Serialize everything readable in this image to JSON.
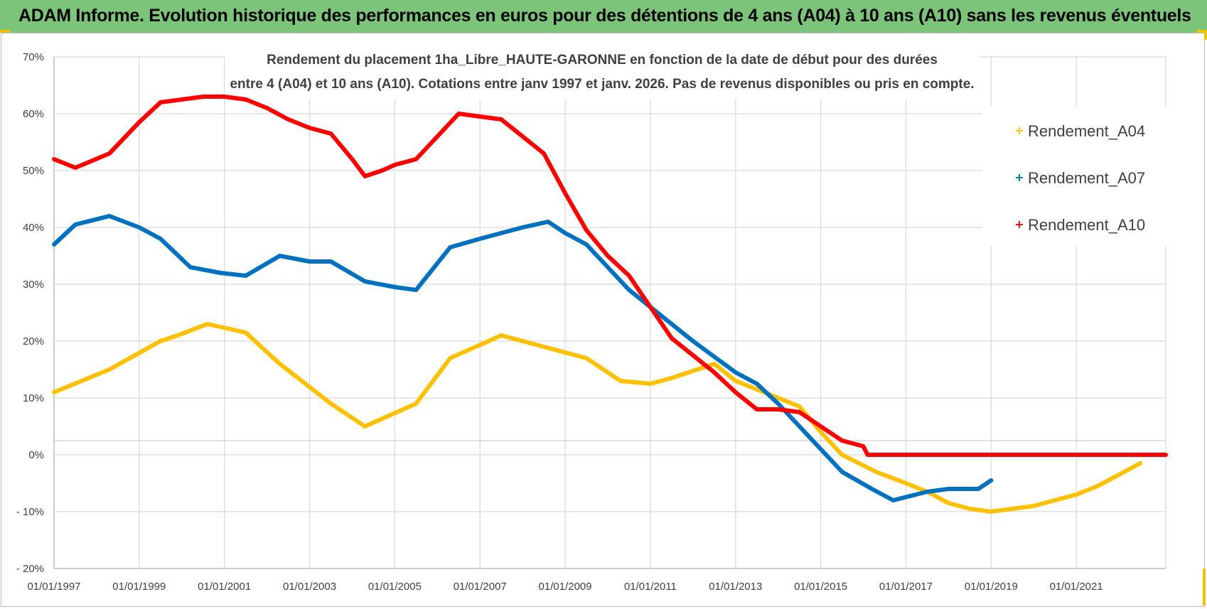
{
  "header": {
    "title": "ADAM Informe. Evolution historique des performances en euros pour des détentions de 4 ans (A04) à 10 ans (A10) sans les revenus éventuels"
  },
  "colors": {
    "header_bg": "#7cc47a",
    "A04": "#ffc000",
    "A07": "#0070c0",
    "A10": "#ff0000"
  },
  "chart_data": {
    "type": "line",
    "subtitle_lines": [
      "Rendement du placement 1ha_Libre_HAUTE-GARONNE en fonction de la date de début pour des durées",
      "entre 4 (A04) et 10 ans (A10).  Cotations entre janv 1997 et janv. 2026. Pas de revenus disponibles ou pris en compte."
    ],
    "x_ticks": [
      "01/01/1997",
      "01/01/1999",
      "01/01/2001",
      "01/01/2003",
      "01/01/2005",
      "01/01/2007",
      "01/01/2009",
      "01/01/2011",
      "01/01/2013",
      "01/01/2015",
      "01/01/2017",
      "01/01/2019",
      "01/01/2021"
    ],
    "xlim": [
      1997.0,
      2023.1
    ],
    "y_ticks": [
      "70%",
      "60%",
      "50%",
      "40%",
      "30%",
      "20%",
      "10%",
      "0%",
      "- 10%",
      "- 20%"
    ],
    "ylim": [
      -20,
      70
    ],
    "grid": true,
    "legend_position": "right",
    "series": [
      {
        "name": "Rendement_A04",
        "color_key": "A04",
        "x": [
          1997.0,
          1998.3,
          1999.5,
          1999.9,
          2000.6,
          2001.5,
          2002.3,
          2003.5,
          2004.3,
          2005.5,
          2006.3,
          2007.5,
          2008.5,
          2009.5,
          2010.3,
          2011.0,
          2011.5,
          2012.5,
          2013.0,
          2014.0,
          2014.5,
          2015.0,
          2015.5,
          2016.3,
          2017.0,
          2017.5,
          2018.0,
          2018.5,
          2019.0,
          2020.0,
          2020.5,
          2021.0,
          2021.5,
          2022.0,
          2022.5
        ],
        "y": [
          11,
          15,
          20,
          21,
          23,
          21.5,
          16,
          9,
          5,
          9,
          17,
          21,
          19,
          17,
          13,
          12.5,
          13.5,
          16,
          13,
          10,
          8.5,
          4,
          0,
          -3,
          -5,
          -6.5,
          -8.5,
          -9.5,
          -10,
          -9,
          -8,
          -7,
          -5.5,
          -3.5,
          -1.5
        ]
      },
      {
        "name": "Rendement_A07",
        "color_key": "A07",
        "x": [
          1997.0,
          1997.5,
          1998.3,
          1999.0,
          1999.5,
          2000.2,
          2000.9,
          2001.5,
          2002.3,
          2003.0,
          2003.5,
          2004.3,
          2005.0,
          2005.5,
          2006.3,
          2007.0,
          2007.5,
          2008.0,
          2008.6,
          2009.0,
          2009.5,
          2010.0,
          2010.5,
          2011.0,
          2012.0,
          2013.0,
          2013.5,
          2014.0,
          2015.0,
          2015.5,
          2016.2,
          2016.7,
          2017.5,
          2018.0,
          2018.7,
          2019.0
        ],
        "y": [
          37,
          40.5,
          42,
          40,
          38,
          33,
          32,
          31.5,
          35,
          34,
          34,
          30.5,
          29.5,
          29,
          36.5,
          38,
          39,
          40,
          41,
          39,
          37,
          33,
          29,
          26,
          20,
          14.5,
          12.5,
          9,
          1,
          -3,
          -6,
          -8,
          -6.5,
          -6,
          -6,
          -4.5
        ]
      },
      {
        "name": "Rendement_A10",
        "color_key": "A10",
        "x": [
          1997.0,
          1997.5,
          1998.3,
          1999.0,
          1999.5,
          2000.0,
          2000.5,
          2001.0,
          2001.5,
          2002.0,
          2002.5,
          2003.0,
          2003.5,
          2004.0,
          2004.3,
          2004.7,
          2005.0,
          2005.5,
          2006.0,
          2006.5,
          2007.0,
          2007.5,
          2008.0,
          2008.5,
          2009.0,
          2009.5,
          2010.0,
          2010.5,
          2011.0,
          2011.5,
          2012.0,
          2012.5,
          2013.0,
          2013.5,
          2014.0,
          2014.5,
          2015.0,
          2015.5,
          2016.0,
          2016.1,
          2023.1
        ],
        "y": [
          52,
          50.5,
          53,
          58.5,
          62,
          62.5,
          63,
          63,
          62.5,
          61,
          59,
          57.5,
          56.5,
          52,
          49,
          50,
          51,
          52,
          56,
          60,
          59.5,
          59,
          56,
          53,
          46,
          39.5,
          35,
          31.5,
          26,
          20.5,
          17.5,
          14.5,
          11,
          8,
          8,
          7.5,
          5,
          2.5,
          1.5,
          0,
          0
        ]
      }
    ]
  }
}
